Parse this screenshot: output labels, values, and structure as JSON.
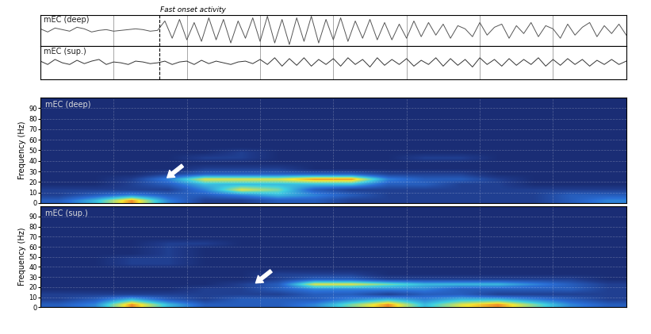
{
  "chart_data": [
    {
      "type": "line",
      "annotations": [
        "Fast onset activity"
      ],
      "onset": 1.62,
      "xlim": [
        0,
        8
      ],
      "xticks": [
        1,
        2,
        3,
        4,
        5,
        6,
        7
      ],
      "ylim": [
        -1,
        1
      ],
      "grid": true,
      "tick_labels": false,
      "x": [
        0,
        0.1,
        0.2,
        0.3,
        0.4,
        0.5,
        0.6,
        0.7,
        0.8,
        0.9,
        1.0,
        1.1,
        1.2,
        1.3,
        1.4,
        1.5,
        1.6,
        1.7,
        1.8,
        1.9,
        2.0,
        2.1,
        2.2,
        2.3,
        2.4,
        2.5,
        2.6,
        2.7,
        2.8,
        2.9,
        3.0,
        3.1,
        3.2,
        3.3,
        3.4,
        3.5,
        3.6,
        3.7,
        3.8,
        3.9,
        4.0,
        4.1,
        4.2,
        4.3,
        4.4,
        4.5,
        4.6,
        4.7,
        4.8,
        4.9,
        5.0,
        5.1,
        5.2,
        5.3,
        5.4,
        5.5,
        5.6,
        5.7,
        5.8,
        5.9,
        6.0,
        6.1,
        6.2,
        6.3,
        6.4,
        6.5,
        6.6,
        6.7,
        6.8,
        6.9,
        7.0,
        7.1,
        7.2,
        7.3,
        7.4,
        7.5,
        7.6,
        7.7,
        7.8,
        7.9,
        8.0
      ],
      "series": [
        {
          "name": "mEC (deep)",
          "color": "#555555",
          "values": [
            0.1,
            -0.1,
            0.15,
            0.05,
            -0.05,
            0.2,
            0.1,
            -0.1,
            0,
            0.05,
            -0.05,
            0,
            0.05,
            0.1,
            0.05,
            -0.05,
            0.0,
            0.6,
            -0.5,
            0.7,
            -0.6,
            0.5,
            -0.7,
            0.8,
            -0.6,
            0.7,
            -0.8,
            0.6,
            -0.5,
            0.8,
            -0.7,
            0.9,
            -0.8,
            0.7,
            -0.9,
            0.8,
            -0.7,
            0.9,
            -0.8,
            0.7,
            -0.6,
            0.8,
            -0.7,
            0.6,
            -0.5,
            0.7,
            -0.6,
            0.5,
            -0.6,
            0.4,
            -0.5,
            0.6,
            -0.4,
            0.5,
            -0.3,
            0.4,
            -0.5,
            0.3,
            0.1,
            -0.4,
            0.5,
            -0.3,
            0.2,
            0.4,
            -0.5,
            0.3,
            -0.2,
            0.5,
            -0.4,
            0.3,
            0.1,
            -0.5,
            0.4,
            -0.3,
            0.2,
            0.5,
            -0.4,
            0.3,
            -0.2,
            0.4,
            -0.3
          ]
        },
        {
          "name": "mEC (sup.)",
          "color": "#333333",
          "values": [
            0.1,
            -0.1,
            0.2,
            0,
            -0.1,
            0.15,
            -0.05,
            0.1,
            0.2,
            -0.1,
            0.05,
            0,
            -0.1,
            0.1,
            0.05,
            -0.05,
            0,
            0.1,
            -0.1,
            0.05,
            0.1,
            -0.1,
            0.15,
            -0.05,
            0.1,
            0,
            -0.1,
            0.05,
            0.1,
            -0.05,
            0.2,
            -0.1,
            0.3,
            -0.2,
            0.25,
            -0.15,
            0.3,
            -0.2,
            0.2,
            -0.1,
            0.25,
            -0.2,
            0.3,
            -0.1,
            0.2,
            -0.25,
            0.3,
            -0.15,
            0.2,
            -0.1,
            0.25,
            -0.2,
            0.15,
            -0.1,
            0.3,
            -0.2,
            0.25,
            -0.15,
            0.2,
            -0.25,
            0.3,
            -0.1,
            0.2,
            -0.2,
            0.25,
            -0.15,
            0.2,
            -0.1,
            0.3,
            -0.2,
            0.2,
            -0.15,
            0.25,
            -0.1,
            0.2,
            -0.2,
            0.15,
            -0.1,
            0.2,
            -0.1,
            0.1
          ]
        }
      ]
    },
    {
      "type": "heatmap",
      "title": "mEC (deep)",
      "ylabel": "Frequency (Hz)",
      "xlim": [
        0,
        8
      ],
      "xticks": [
        1,
        2,
        3,
        4,
        5,
        6,
        7
      ],
      "ylim": [
        0,
        100
      ],
      "yticks": [
        0,
        10,
        20,
        30,
        40,
        50,
        60,
        70,
        80,
        90
      ],
      "tick_labels": "y",
      "grid": true,
      "clim": [
        0,
        9
      ],
      "arrows": [
        {
          "x": 1.73,
          "y": 24
        }
      ],
      "cells": [
        [
          3,
          5,
          8,
          4,
          2,
          2,
          3,
          3,
          2,
          2,
          2,
          2,
          2,
          2,
          3,
          4
        ],
        [
          2,
          3,
          4,
          3,
          3,
          4,
          5,
          4,
          3,
          2,
          2,
          2,
          2,
          2,
          3,
          3
        ],
        [
          2,
          2,
          2,
          2,
          4,
          7,
          6,
          3,
          2,
          2,
          2,
          2,
          2,
          2,
          2,
          2
        ],
        [
          1,
          1,
          2,
          3,
          5,
          5,
          5,
          5,
          5,
          3,
          3,
          2,
          2,
          1,
          1,
          1
        ],
        [
          1,
          1,
          2,
          4,
          7,
          7,
          7,
          8,
          8,
          4,
          3,
          3,
          2,
          1,
          1,
          1
        ],
        [
          1,
          1,
          1,
          2,
          3,
          3,
          3,
          3,
          3,
          2,
          2,
          2,
          1,
          1,
          1,
          1
        ],
        [
          1,
          1,
          1,
          1,
          2,
          2,
          2,
          1,
          1,
          1,
          1,
          1,
          1,
          1,
          1,
          1
        ],
        [
          1,
          1,
          1,
          1,
          1,
          1,
          1,
          1,
          1,
          1,
          1,
          1,
          1,
          1,
          1,
          1
        ],
        [
          1,
          1,
          1,
          1,
          2,
          2,
          1,
          1,
          1,
          1,
          2,
          2,
          1,
          1,
          1,
          1
        ],
        [
          1,
          1,
          1,
          1,
          1,
          2,
          1,
          1,
          1,
          1,
          1,
          1,
          1,
          1,
          1,
          1
        ],
        [
          1,
          1,
          1,
          1,
          1,
          1,
          1,
          1,
          1,
          1,
          1,
          1,
          1,
          1,
          1,
          1
        ],
        [
          1,
          1,
          1,
          1,
          1,
          1,
          1,
          1,
          1,
          1,
          1,
          1,
          1,
          1,
          1,
          1
        ],
        [
          1,
          1,
          1,
          1,
          1,
          1,
          1,
          1,
          1,
          1,
          1,
          1,
          1,
          1,
          1,
          1
        ],
        [
          1,
          1,
          1,
          1,
          1,
          1,
          1,
          1,
          1,
          1,
          1,
          1,
          1,
          1,
          1,
          1
        ],
        [
          1,
          1,
          1,
          1,
          1,
          1,
          1,
          1,
          1,
          1,
          1,
          1,
          1,
          1,
          1,
          1
        ],
        [
          1,
          1,
          1,
          1,
          1,
          1,
          1,
          1,
          1,
          1,
          1,
          1,
          1,
          1,
          1,
          1
        ],
        [
          1,
          1,
          1,
          1,
          1,
          1,
          1,
          1,
          1,
          1,
          1,
          1,
          1,
          1,
          1,
          1
        ],
        [
          1,
          1,
          1,
          1,
          1,
          1,
          1,
          1,
          1,
          1,
          1,
          1,
          1,
          1,
          1,
          1
        ],
        [
          1,
          1,
          1,
          1,
          1,
          1,
          1,
          1,
          1,
          1,
          1,
          1,
          1,
          1,
          1,
          1
        ],
        [
          1,
          1,
          1,
          1,
          1,
          1,
          1,
          1,
          1,
          1,
          1,
          1,
          1,
          1,
          1,
          1
        ]
      ]
    },
    {
      "type": "heatmap",
      "title": "mEC (sup.)",
      "ylabel": "Frequency (Hz)",
      "xlim": [
        0,
        8
      ],
      "xticks": [
        1,
        2,
        3,
        4,
        5,
        6,
        7
      ],
      "ylim": [
        0,
        100
      ],
      "yticks": [
        0,
        10,
        20,
        30,
        40,
        50,
        60,
        70,
        80,
        90
      ],
      "tick_labels": "y",
      "grid": true,
      "clim": [
        0,
        9
      ],
      "arrows": [
        {
          "x": 2.94,
          "y": 24
        }
      ],
      "cells": [
        [
          3,
          4,
          8,
          5,
          3,
          3,
          3,
          4,
          6,
          8,
          5,
          7,
          8,
          6,
          4,
          3
        ],
        [
          2,
          3,
          5,
          3,
          2,
          3,
          3,
          3,
          4,
          5,
          4,
          5,
          5,
          4,
          3,
          2
        ],
        [
          2,
          2,
          2,
          2,
          2,
          2,
          2,
          3,
          3,
          2,
          3,
          3,
          2,
          2,
          2,
          2
        ],
        [
          1,
          1,
          1,
          1,
          2,
          2,
          3,
          4,
          4,
          4,
          4,
          3,
          3,
          3,
          3,
          2
        ],
        [
          1,
          1,
          1,
          1,
          1,
          2,
          3,
          7,
          7,
          6,
          5,
          5,
          5,
          4,
          3,
          2
        ],
        [
          1,
          1,
          1,
          1,
          1,
          1,
          2,
          3,
          3,
          2,
          2,
          2,
          2,
          2,
          2,
          1
        ],
        [
          1,
          1,
          1,
          1,
          1,
          1,
          2,
          2,
          2,
          1,
          1,
          1,
          1,
          1,
          1,
          1
        ],
        [
          1,
          1,
          1,
          1,
          1,
          1,
          1,
          1,
          1,
          1,
          1,
          1,
          1,
          1,
          1,
          1
        ],
        [
          1,
          1,
          2,
          2,
          1,
          1,
          1,
          1,
          1,
          1,
          1,
          1,
          1,
          1,
          1,
          1
        ],
        [
          1,
          1,
          2,
          2,
          1,
          1,
          1,
          1,
          1,
          1,
          1,
          1,
          1,
          1,
          1,
          1
        ],
        [
          1,
          1,
          1,
          2,
          1,
          1,
          1,
          1,
          1,
          1,
          1,
          1,
          1,
          1,
          1,
          1
        ],
        [
          1,
          1,
          1,
          2,
          1,
          1,
          1,
          1,
          1,
          1,
          1,
          1,
          1,
          1,
          1,
          1
        ],
        [
          1,
          1,
          1,
          2,
          2,
          1,
          1,
          1,
          1,
          1,
          1,
          1,
          1,
          1,
          1,
          1
        ],
        [
          1,
          1,
          1,
          1,
          1,
          1,
          1,
          1,
          1,
          1,
          1,
          1,
          1,
          1,
          1,
          1
        ],
        [
          1,
          1,
          1,
          1,
          1,
          1,
          1,
          1,
          1,
          1,
          1,
          1,
          1,
          1,
          1,
          1
        ],
        [
          1,
          1,
          1,
          1,
          1,
          1,
          1,
          1,
          1,
          1,
          1,
          1,
          1,
          1,
          1,
          1
        ],
        [
          1,
          1,
          1,
          1,
          1,
          1,
          1,
          1,
          1,
          1,
          1,
          1,
          1,
          1,
          1,
          1
        ],
        [
          1,
          1,
          1,
          1,
          1,
          1,
          1,
          1,
          1,
          1,
          1,
          1,
          1,
          1,
          1,
          1
        ],
        [
          1,
          1,
          1,
          1,
          1,
          1,
          1,
          1,
          1,
          1,
          1,
          1,
          1,
          1,
          1,
          1
        ],
        [
          1,
          1,
          1,
          1,
          1,
          1,
          1,
          1,
          1,
          1,
          1,
          1,
          1,
          1,
          1,
          1
        ]
      ]
    }
  ]
}
